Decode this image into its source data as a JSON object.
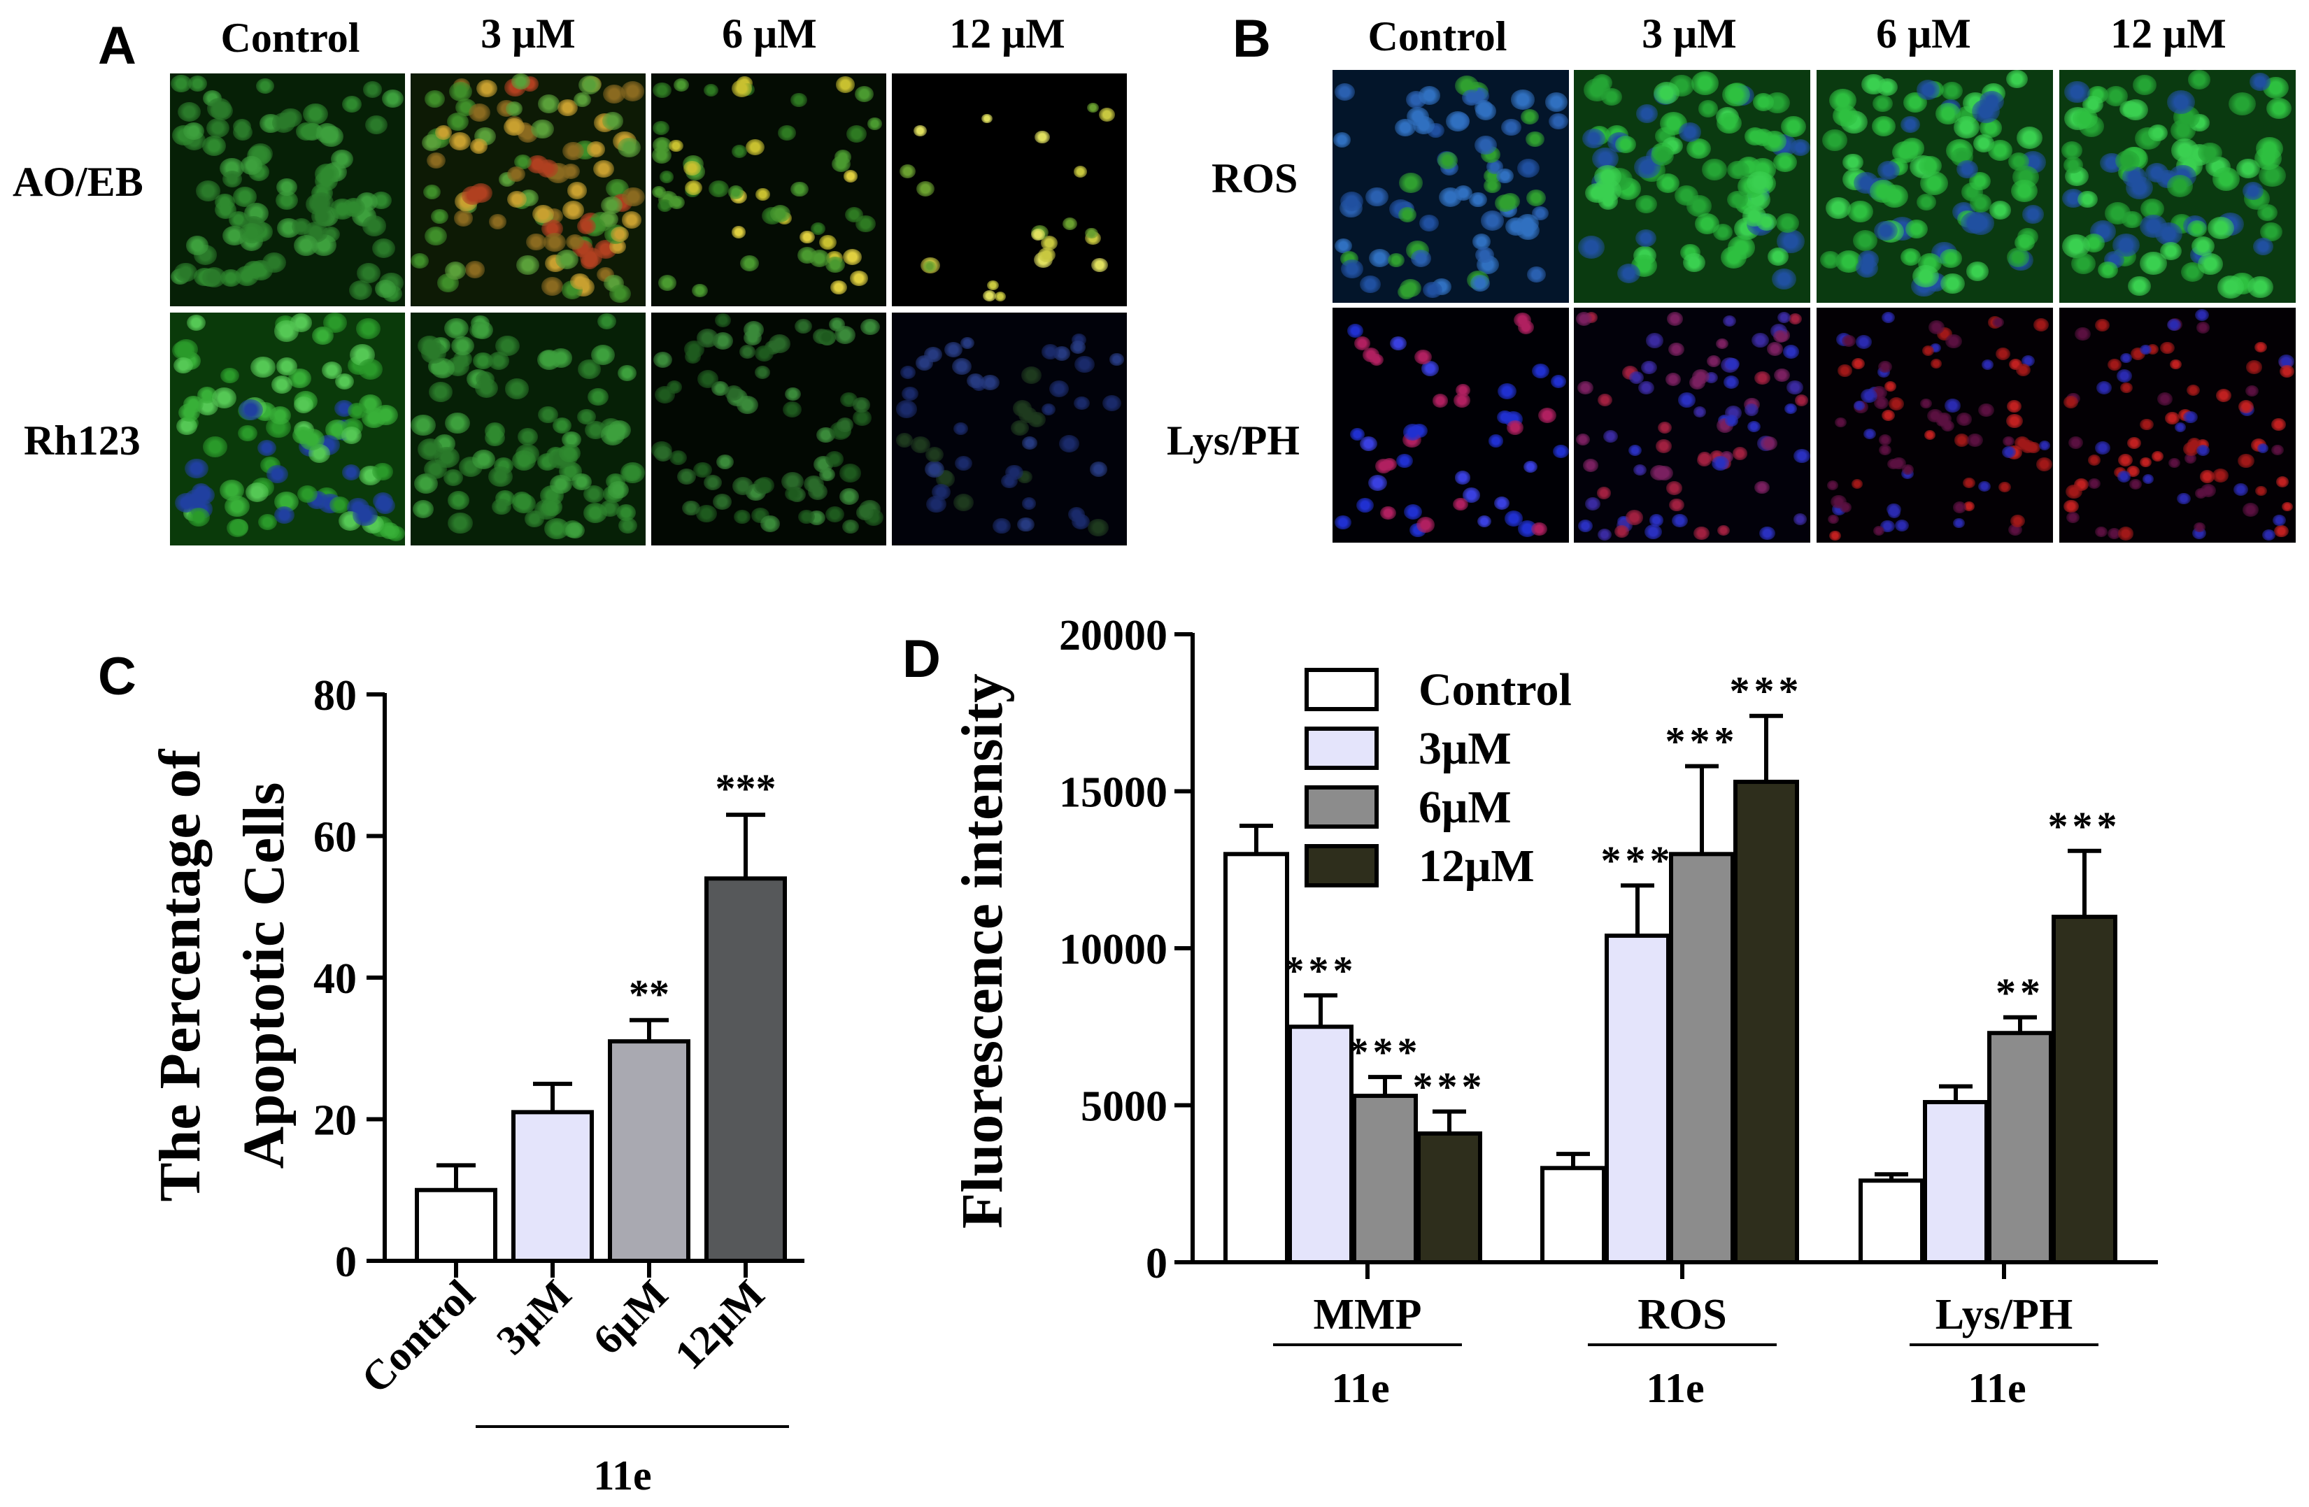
{
  "panel_a": {
    "letter": "A",
    "columns": [
      "Control",
      "3 μM",
      "6 μM",
      "12 μM"
    ],
    "rows": [
      "AO/EB",
      "Rh123"
    ]
  },
  "panel_b": {
    "letter": "B",
    "columns": [
      "Control",
      "3 μM",
      "6 μM",
      "12 μM"
    ],
    "rows": [
      "ROS",
      "Lys/PH"
    ]
  },
  "colors": {
    "control": "#ffffff",
    "c3uM": "#e4e4fb",
    "c6uM_c": "#a9a9b1",
    "c12uM_c": "#56585a",
    "c6uM_d": "#8c8c8c",
    "c12uM_d": "#2e2e1c"
  },
  "chart_data": [
    {
      "panel": "C",
      "type": "bar",
      "ylabel_lines": [
        "The Percentage of",
        "Apoptotic Cells"
      ],
      "ylim": [
        0,
        80
      ],
      "yticks": [
        "0",
        "20",
        "40",
        "60",
        "80"
      ],
      "categories": [
        "Control",
        "3μM",
        "6μM",
        "12μM"
      ],
      "values": [
        10,
        21,
        31,
        54
      ],
      "errors": [
        3.5,
        4,
        3,
        9
      ],
      "significance": [
        "",
        "",
        "**",
        "***"
      ],
      "group_label": "11e"
    },
    {
      "panel": "D",
      "type": "bar",
      "ylabel": "Fluorescence intensity",
      "ylim": [
        0,
        20000
      ],
      "yticks": [
        "0",
        "5000",
        "10000",
        "15000",
        "20000"
      ],
      "categories": [
        "MMP",
        "ROS",
        "Lys/PH"
      ],
      "group_sublabel": "11e",
      "legend_position": "top-left",
      "series": [
        {
          "name": "Control",
          "values": [
            13000,
            3000,
            2600
          ],
          "errors": [
            900,
            450,
            200
          ],
          "significance": [
            "",
            "",
            ""
          ]
        },
        {
          "name": "3μM",
          "values": [
            7500,
            10400,
            5100
          ],
          "errors": [
            1000,
            1600,
            500
          ],
          "significance": [
            "***",
            "***",
            ""
          ]
        },
        {
          "name": "6μM",
          "values": [
            5300,
            13000,
            7300
          ],
          "errors": [
            600,
            2800,
            500
          ],
          "significance": [
            "***",
            "***",
            "**"
          ]
        },
        {
          "name": "12μM",
          "values": [
            4100,
            15300,
            11000
          ],
          "errors": [
            700,
            2100,
            2100
          ],
          "significance": [
            "***",
            "***",
            "***"
          ]
        }
      ]
    }
  ]
}
